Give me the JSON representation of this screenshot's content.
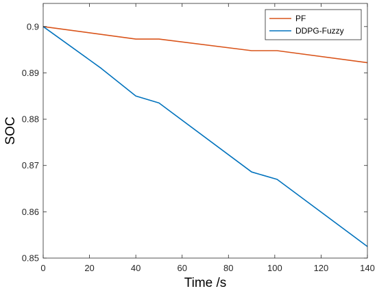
{
  "chart_data": {
    "type": "line",
    "title": "",
    "xlabel": "Time /s",
    "ylabel": "SOC",
    "xlim": [
      0,
      140
    ],
    "ylim": [
      0.85,
      0.905
    ],
    "xticks": [
      0,
      20,
      40,
      60,
      80,
      100,
      120,
      140
    ],
    "yticks": [
      0.85,
      0.86,
      0.87,
      0.88,
      0.89,
      0.9
    ],
    "xtick_labels": [
      "0",
      "20",
      "40",
      "60",
      "80",
      "100",
      "120",
      "140"
    ],
    "ytick_labels": [
      "0.85",
      "0.86",
      "0.87",
      "0.88",
      "0.89",
      "0.9"
    ],
    "grid": false,
    "legend_position": "top-right",
    "series": [
      {
        "name": "PF",
        "color": "#d95319",
        "x": [
          0,
          40,
          50,
          90,
          101,
          140
        ],
        "y": [
          0.9,
          0.8973,
          0.8973,
          0.8948,
          0.8948,
          0.8922
        ]
      },
      {
        "name": "DDPG-Fuzzy",
        "color": "#0072bd",
        "x": [
          0,
          25,
          40,
          50,
          90,
          101,
          140
        ],
        "y": [
          0.9,
          0.891,
          0.885,
          0.8835,
          0.8686,
          0.867,
          0.8525
        ]
      }
    ]
  }
}
